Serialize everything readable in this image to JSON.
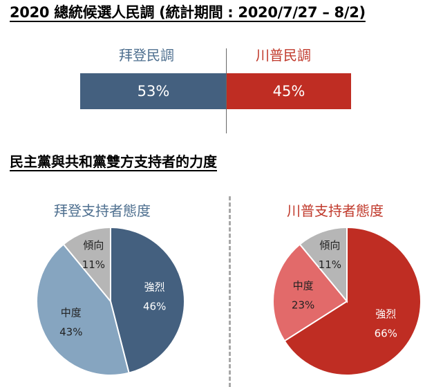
{
  "title": "2020 總統候選人民調 (統計期間 : 2020/7/27 – 8/2)",
  "subtitle": "民主黨與共和黨雙方支持者的力度",
  "colors": {
    "biden": "#44607f",
    "biden_light": "#86a5c0",
    "trump": "#bf2d23",
    "trump_light": "#e26a6a",
    "grey": "#b6b6b6"
  },
  "chart_data": [
    {
      "type": "bar",
      "orientation": "horizontal-stacked",
      "categories": [
        "拜登民調",
        "川普民調"
      ],
      "values": [
        53,
        45
      ],
      "data_labels": [
        "53%",
        "45%"
      ]
    },
    {
      "type": "pie",
      "title": "拜登支持者態度",
      "categories": [
        "強烈",
        "中度",
        "傾向"
      ],
      "values": [
        46,
        43,
        11
      ],
      "data_labels": [
        "46%",
        "43%",
        "11%"
      ]
    },
    {
      "type": "pie",
      "title": "川普支持者態度",
      "categories": [
        "強烈",
        "中度",
        "傾向"
      ],
      "values": [
        66,
        23,
        11
      ],
      "data_labels": [
        "66%",
        "23%",
        "11%"
      ]
    }
  ]
}
